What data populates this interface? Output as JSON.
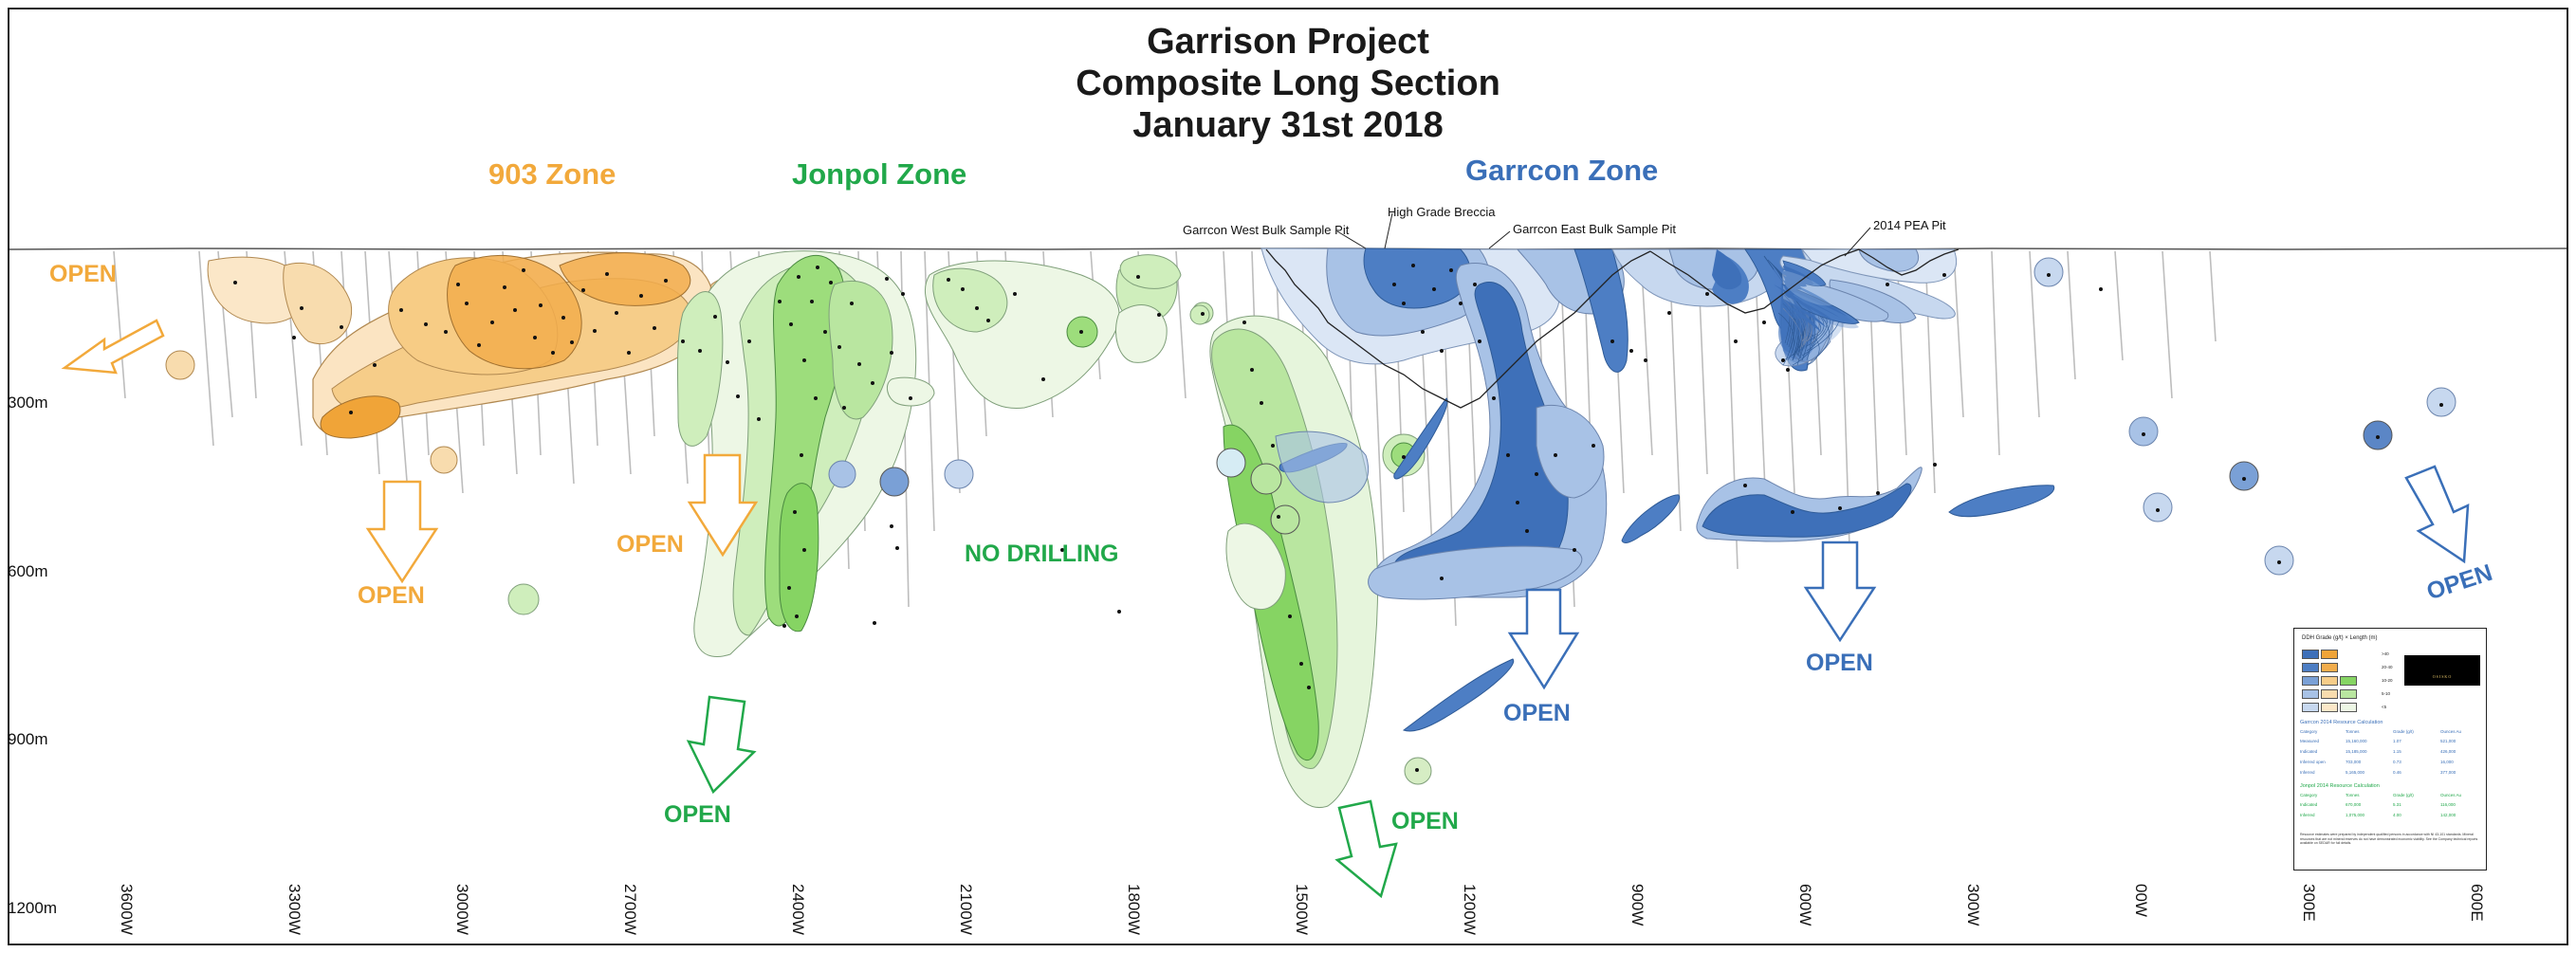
{
  "title": {
    "line1": "Garrison Project",
    "line2": "Composite Long Section",
    "line3": "January 31st 2018"
  },
  "zones": {
    "zone_903": "903 Zone",
    "jonpol": "Jonpol Zone",
    "garrcon": "Garrcon Zone"
  },
  "surface_labels": {
    "west_pit": "Garrcon West Bulk Sample Pit",
    "breccia": "High Grade Breccia",
    "east_pit": "Garrcon East Bulk Sample Pit",
    "pea_pit": "2014 PEA Pit"
  },
  "open_label": "OPEN",
  "no_drilling": "NO DRILLING",
  "depth_labels": [
    "300m",
    "600m",
    "900m",
    "1200m"
  ],
  "easting_labels": [
    "3600W",
    "3300W",
    "3000W",
    "2700W",
    "2400W",
    "2100W",
    "1800W",
    "1500W",
    "1200W",
    "900W",
    "600W",
    "300W",
    "00W",
    "300E",
    "600E"
  ],
  "colors": {
    "orange_zone": "#f2a93b",
    "green_zone": "#21a84a",
    "blue_zone": "#3a6fb8",
    "title": "#1a1a1a"
  },
  "legend": {
    "title": "DDH Grade (g/t) × Length (m)",
    "logo": "OSISKO",
    "logo_sub": "MINING INC.",
    "levels": [
      ">40",
      "20-40",
      "10-20",
      "5-10",
      "<5"
    ],
    "garrcon_title": "Garrcon 2014 Resource Calculation",
    "headers": [
      "Category",
      "Tonnes",
      "Grade (g/t)",
      "Ounces Au"
    ],
    "garrcon_rows": [
      [
        "Measured",
        "15,160,000",
        "1.07",
        "521,000"
      ],
      [
        "Indicated",
        "15,185,000",
        "1.15",
        "426,000"
      ],
      [
        "Inferred open",
        "703,000",
        "0.73",
        "16,000"
      ],
      [
        "Inferred",
        "5,165,000",
        "0.46",
        "377,000"
      ]
    ],
    "jonpol_title": "Jonpol 2014 Resource Calculation",
    "jonpol_rows": [
      [
        "Indicated",
        "670,000",
        "5.31",
        "116,000"
      ],
      [
        "Inferred",
        "1,075,000",
        "4.00",
        "142,000"
      ]
    ],
    "note": "Resource estimates were prepared by independent qualified persons in accordance with NI 43-101 standards. Mineral resources that are not mineral reserves do not have demonstrated economic viability. See the Company technical reports available on SEDAR for full details."
  }
}
